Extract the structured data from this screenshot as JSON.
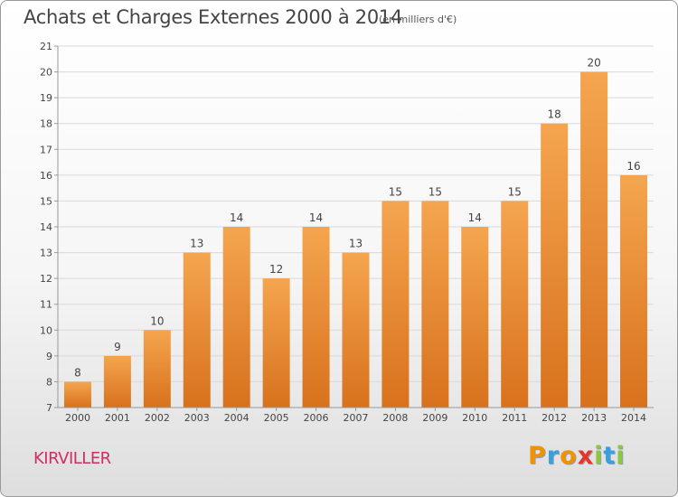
{
  "header": {
    "title": "Achats et Charges Externes 2000 à 2014",
    "unit": "(en milliers d'€)"
  },
  "footer": {
    "commune": "KIRVILLER",
    "brand": {
      "letters": [
        "P",
        "r",
        "o",
        "x",
        "i",
        "t",
        "i"
      ],
      "colors": [
        "#f39200",
        "#3aa0dc",
        "#f39200",
        "#e8352a",
        "#8dc63f",
        "#3aa0dc",
        "#8dc63f"
      ]
    }
  },
  "chart_data": {
    "type": "bar",
    "categories": [
      "2000",
      "2001",
      "2002",
      "2003",
      "2004",
      "2005",
      "2006",
      "2007",
      "2008",
      "2009",
      "2010",
      "2011",
      "2012",
      "2013",
      "2014"
    ],
    "values": [
      8,
      9,
      10,
      13,
      14,
      12,
      14,
      13,
      15,
      15,
      14,
      15,
      18,
      20,
      16
    ],
    "data_labels": [
      "8",
      "9",
      "10",
      "13",
      "14",
      "12",
      "14",
      "13",
      "15",
      "15",
      "14",
      "15",
      "18",
      "20",
      "16"
    ],
    "ylim": [
      7,
      21
    ],
    "yticks": [
      7,
      8,
      9,
      10,
      11,
      12,
      13,
      14,
      15,
      16,
      17,
      18,
      19,
      20,
      21
    ],
    "grid": true,
    "colors": {
      "bar_light": "#f5a54f",
      "bar_dark": "#d8711c",
      "grid": "#d9d9d9",
      "axis": "#999999",
      "text": "#444444"
    }
  }
}
